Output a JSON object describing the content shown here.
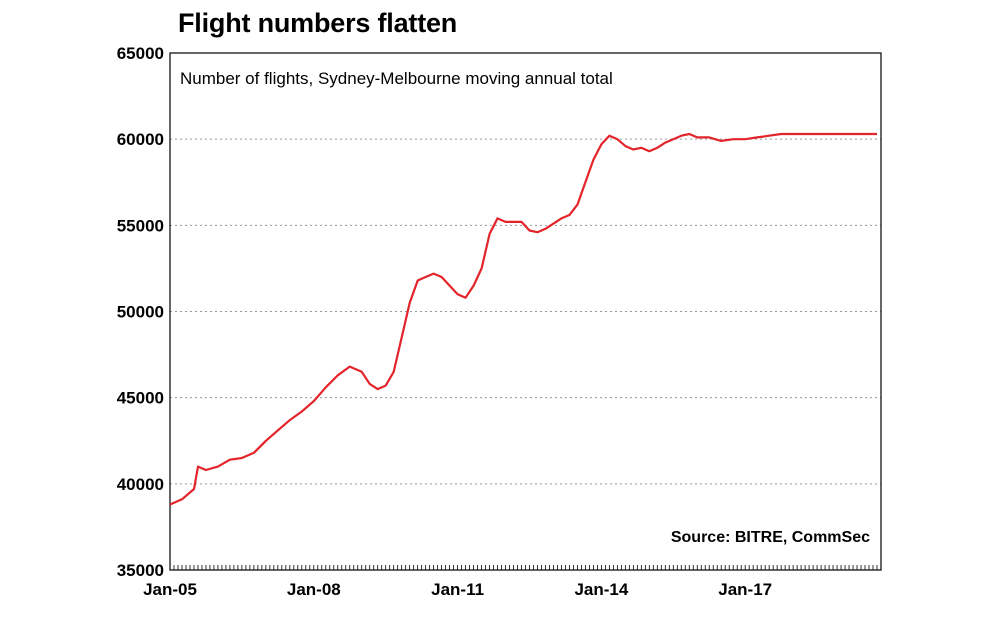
{
  "chart_data": {
    "type": "line",
    "title": "Flight numbers flatten",
    "subtitle": "Number of flights, Sydney-Melbourne moving annual total",
    "source": "Source: BITRE, CommSec",
    "xlabel": "",
    "ylabel": "",
    "ylim": [
      35000,
      65000
    ],
    "yticks": [
      35000,
      40000,
      45000,
      50000,
      55000,
      60000,
      65000
    ],
    "ytick_labels": [
      "35000",
      "40000",
      "45000",
      "50000",
      "55000",
      "60000",
      "65000"
    ],
    "xlim": [
      "2005-01",
      "2019-11"
    ],
    "xticks": [
      "2005-01",
      "2008-01",
      "2011-01",
      "2014-01",
      "2017-01"
    ],
    "xtick_labels": [
      "Jan-05",
      "Jan-08",
      "Jan-11",
      "Jan-14",
      "Jan-17"
    ],
    "grid": "horizontal-dotted",
    "color": "#e3242b",
    "series": [
      {
        "name": "",
        "x": [
          "2005-01",
          "2005-04",
          "2005-07",
          "2005-08",
          "2005-10",
          "2006-01",
          "2006-04",
          "2006-07",
          "2006-10",
          "2007-01",
          "2007-04",
          "2007-07",
          "2007-10",
          "2008-01",
          "2008-04",
          "2008-07",
          "2008-10",
          "2009-01",
          "2009-03",
          "2009-05",
          "2009-07",
          "2009-09",
          "2009-11",
          "2010-01",
          "2010-03",
          "2010-05",
          "2010-07",
          "2010-09",
          "2010-11",
          "2011-01",
          "2011-03",
          "2011-05",
          "2011-07",
          "2011-09",
          "2011-11",
          "2012-01",
          "2012-03",
          "2012-05",
          "2012-07",
          "2012-09",
          "2012-11",
          "2013-01",
          "2013-03",
          "2013-05",
          "2013-07",
          "2013-09",
          "2013-11",
          "2014-01",
          "2014-03",
          "2014-05",
          "2014-07",
          "2014-09",
          "2014-11",
          "2015-01",
          "2015-03",
          "2015-05",
          "2015-07",
          "2015-09",
          "2015-11",
          "2016-01",
          "2016-04",
          "2016-07",
          "2016-10",
          "2017-01",
          "2017-04",
          "2017-07",
          "2017-10",
          "2018-01",
          "2018-04",
          "2018-07",
          "2018-10",
          "2019-01",
          "2019-04",
          "2019-07",
          "2019-10"
        ],
        "values": [
          38800,
          39100,
          39700,
          41000,
          40800,
          41000,
          41400,
          41500,
          41800,
          42500,
          43100,
          43700,
          44200,
          44800,
          45600,
          46300,
          46800,
          46500,
          45800,
          45500,
          45700,
          46500,
          48500,
          50500,
          51800,
          52000,
          52200,
          52000,
          51500,
          51000,
          50800,
          51500,
          52500,
          54500,
          55400,
          55200,
          55200,
          55200,
          54700,
          54600,
          54800,
          55100,
          55400,
          55600,
          56200,
          57500,
          58800,
          59700,
          60200,
          60000,
          59600,
          59400,
          59500,
          59300,
          59500,
          59800,
          60000,
          60200,
          60300,
          60100,
          60100,
          59900,
          60000,
          60000,
          60100,
          60200,
          60300,
          60300,
          60300,
          60300,
          60300,
          60300,
          60300,
          60300,
          60300
        ]
      }
    ]
  }
}
